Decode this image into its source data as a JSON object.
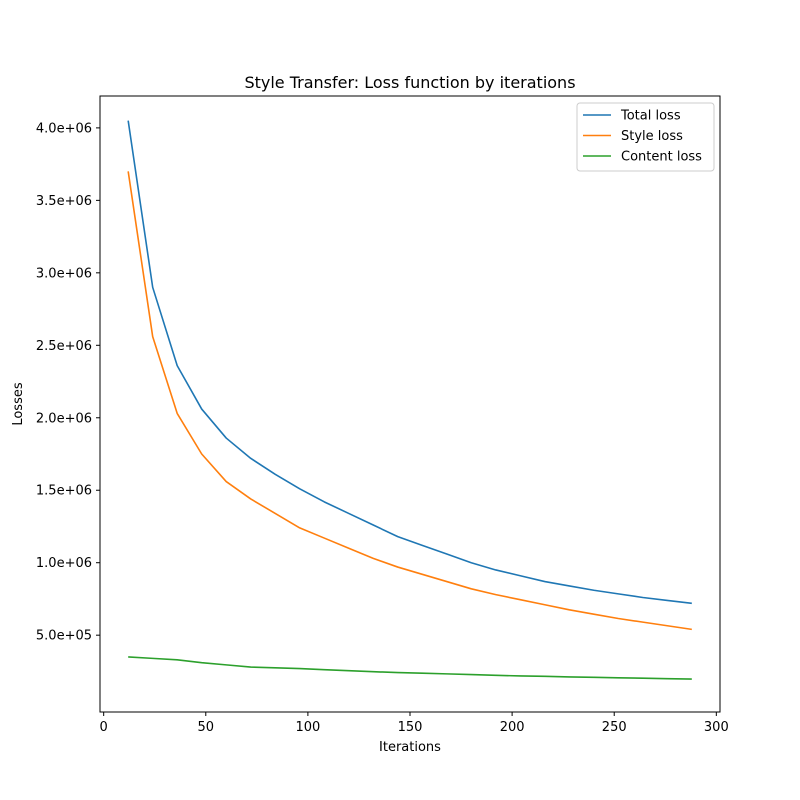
{
  "chart_data": {
    "type": "line",
    "title": "Style Transfer: Loss function by iterations",
    "xlabel": "Iterations",
    "ylabel": "Losses",
    "xlim": [
      -1.8,
      301.8
    ],
    "ylim": [
      -30000,
      4220000
    ],
    "xticks": [
      {
        "value": 0,
        "label": "0"
      },
      {
        "value": 50,
        "label": "50"
      },
      {
        "value": 100,
        "label": "100"
      },
      {
        "value": 150,
        "label": "150"
      },
      {
        "value": 200,
        "label": "200"
      },
      {
        "value": 250,
        "label": "250"
      },
      {
        "value": 300,
        "label": "300"
      }
    ],
    "yticks": [
      {
        "value": 500000,
        "label": "5.0e+05"
      },
      {
        "value": 1000000,
        "label": "1.0e+06"
      },
      {
        "value": 1500000,
        "label": "1.5e+06"
      },
      {
        "value": 2000000,
        "label": "2.0e+06"
      },
      {
        "value": 2500000,
        "label": "2.5e+06"
      },
      {
        "value": 3000000,
        "label": "3.0e+06"
      },
      {
        "value": 3500000,
        "label": "3.5e+06"
      },
      {
        "value": 4000000,
        "label": "4.0e+06"
      }
    ],
    "grid": false,
    "legend_position": "top-right",
    "x": [
      12,
      24,
      36,
      48,
      60,
      72,
      84,
      96,
      108,
      120,
      132,
      144,
      156,
      168,
      180,
      192,
      204,
      216,
      228,
      240,
      252,
      264,
      276,
      288
    ],
    "series": [
      {
        "name": "Total loss",
        "color": "#1f77b4",
        "values": [
          4050000,
          2900000,
          2360000,
          2060000,
          1860000,
          1720000,
          1610000,
          1510000,
          1420000,
          1340000,
          1260000,
          1180000,
          1120000,
          1060000,
          1000000,
          950000,
          910000,
          870000,
          840000,
          810000,
          785000,
          760000,
          740000,
          720000
        ]
      },
      {
        "name": "Style loss",
        "color": "#ff7f0e",
        "values": [
          3700000,
          2560000,
          2030000,
          1750000,
          1560000,
          1440000,
          1340000,
          1240000,
          1170000,
          1100000,
          1030000,
          970000,
          920000,
          870000,
          820000,
          780000,
          745000,
          710000,
          675000,
          645000,
          615000,
          590000,
          565000,
          540000
        ]
      },
      {
        "name": "Content loss",
        "color": "#2ca02c",
        "values": [
          350000,
          340000,
          330000,
          310000,
          295000,
          280000,
          275000,
          270000,
          262000,
          255000,
          248000,
          242000,
          238000,
          233000,
          228000,
          223000,
          219000,
          216000,
          212000,
          209000,
          206000,
          203000,
          200000,
          197000
        ]
      }
    ]
  }
}
